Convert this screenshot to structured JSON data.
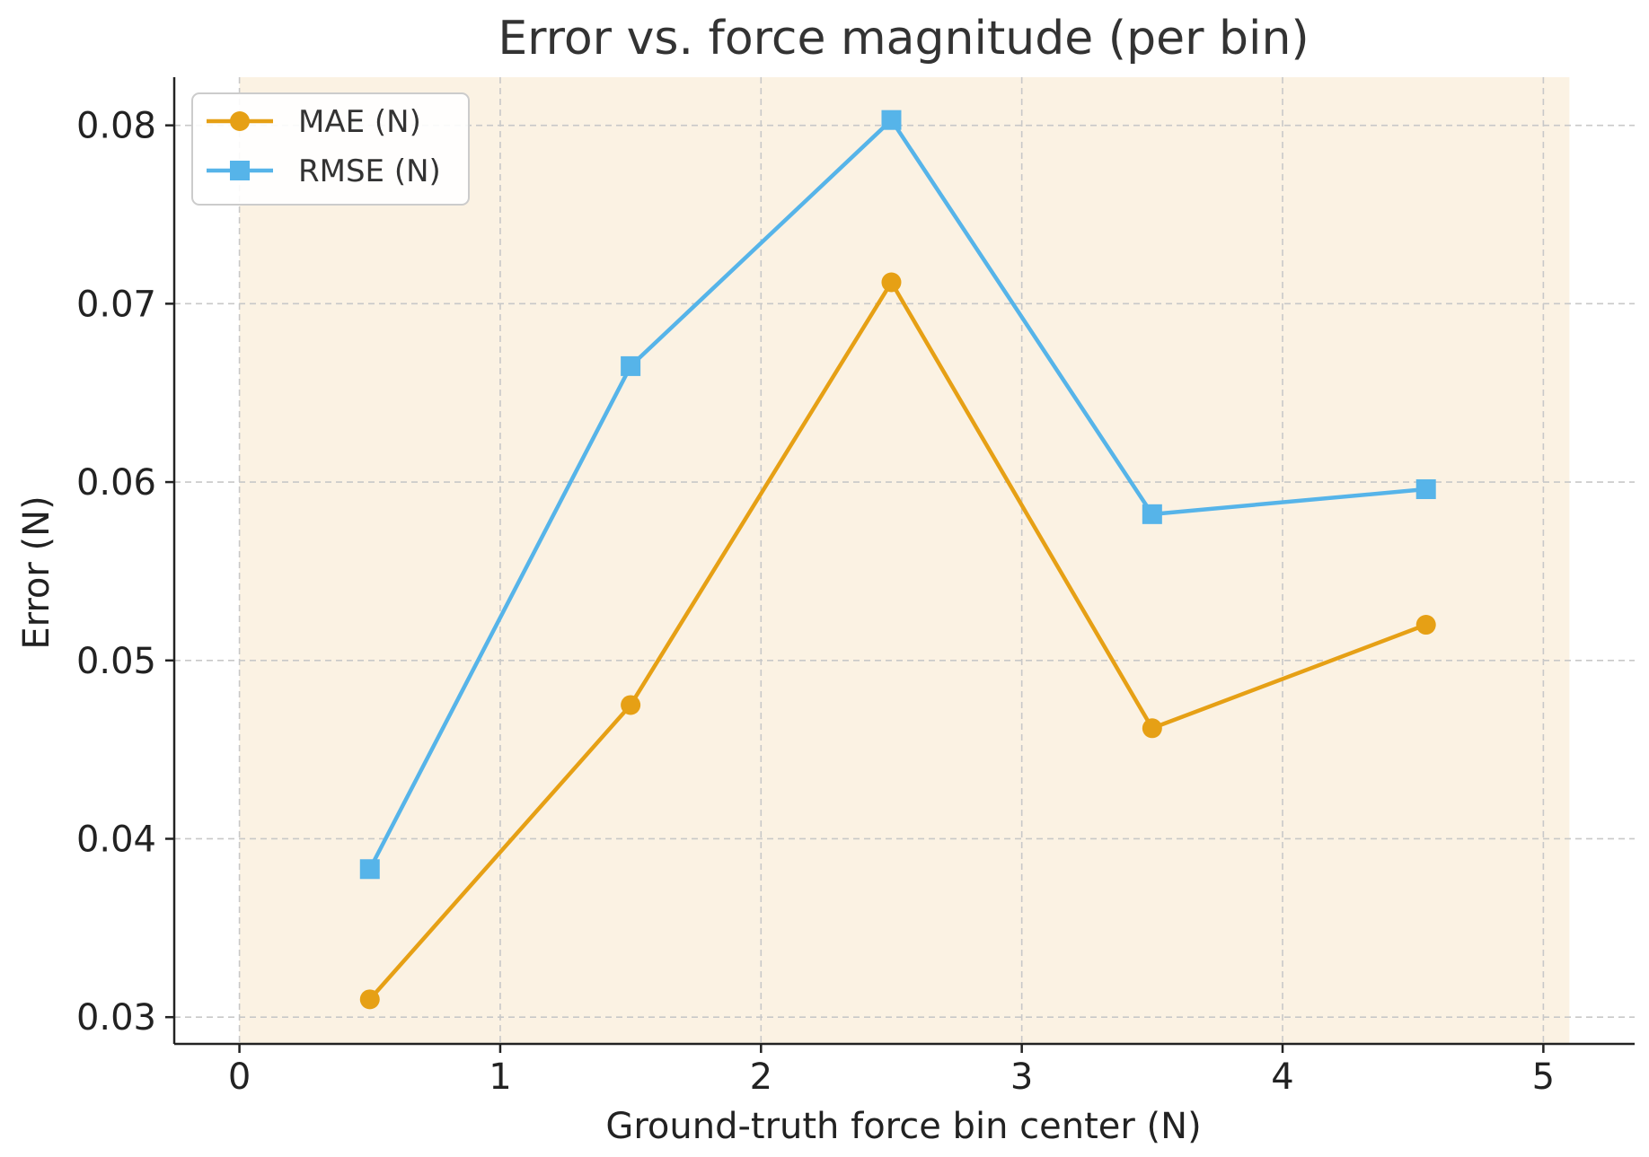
{
  "chart_data": {
    "type": "line",
    "title": "Error vs. force magnitude (per bin)",
    "xlabel": "Ground-truth force bin center (N)",
    "ylabel": "Error (N)",
    "xlim": [
      -0.25,
      5.35
    ],
    "ylim": [
      0.0285,
      0.0827
    ],
    "shaded_region": [
      0,
      5.1
    ],
    "xticks": [
      0,
      1,
      2,
      3,
      4,
      5
    ],
    "xtick_labels": [
      "0",
      "1",
      "2",
      "3",
      "4",
      "5"
    ],
    "yticks": [
      0.03,
      0.04,
      0.05,
      0.06,
      0.07,
      0.08
    ],
    "ytick_labels": [
      "0.03",
      "0.04",
      "0.05",
      "0.06",
      "0.07",
      "0.08"
    ],
    "grid": true,
    "legend_position": "upper-left",
    "series": [
      {
        "name": "MAE (N)",
        "marker": "circle",
        "color": "#E6A015",
        "x": [
          0.5,
          1.5,
          2.5,
          3.5,
          4.55
        ],
        "y": [
          0.031,
          0.0475,
          0.0712,
          0.0462,
          0.052
        ]
      },
      {
        "name": "RMSE (N)",
        "marker": "square",
        "color": "#56B4E9",
        "x": [
          0.5,
          1.5,
          2.5,
          3.5,
          4.55
        ],
        "y": [
          0.0383,
          0.0665,
          0.0803,
          0.0582,
          0.0596
        ]
      }
    ]
  },
  "colors": {
    "shade": "#FBF2E3",
    "grid": "#C8C8C8",
    "axis": "#222222"
  }
}
